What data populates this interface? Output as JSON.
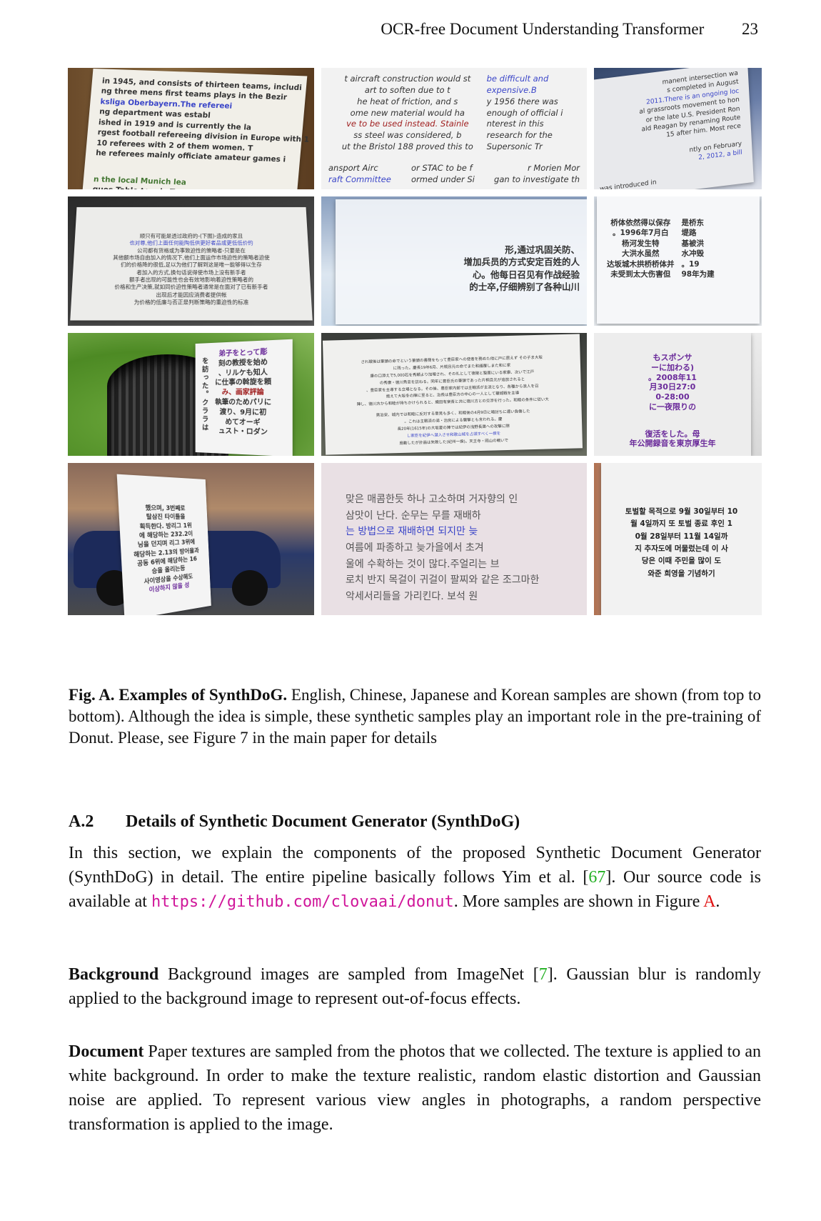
{
  "header": {
    "title": "OCR-free Document Understanding Transformer",
    "page": "23"
  },
  "figure": {
    "cells": [
      {
        "id": "en1",
        "lines": [
          {
            "t": "in 1945, and consists of thirteen teams, includi",
            "c": ""
          },
          {
            "t": "ng three mens first teams plays in the Bezir",
            "c": ""
          },
          {
            "t": "ksliga Oberbayern.The refereei",
            "c": "blue"
          },
          {
            "t": "ng department was establ",
            "c": ""
          },
          {
            "t": "ished in 1919 and is currently the la",
            "c": ""
          },
          {
            "t": "rgest football refereeing division in Europe with 1",
            "c": ""
          },
          {
            "t": "10 referees with 2 of them women. T",
            "c": ""
          },
          {
            "t": "he referees mainly officiate amateur games i",
            "c": ""
          },
          {
            "t": "n the local Munich lea",
            "c": "green"
          },
          {
            "t": "gues.Table tennis.T",
            "c": ""
          }
        ]
      },
      {
        "id": "en2",
        "lines": [
          {
            "t": "t aircraft construction would st",
            "c": ""
          },
          {
            "t": "art to soften due to t",
            "c": ""
          },
          {
            "t": "he heat of friction, and s",
            "c": ""
          },
          {
            "t": "ome new material would ha",
            "c": ""
          },
          {
            "t": "ve to be used instead. Stainle",
            "c": "red"
          },
          {
            "t": "ss steel was considered, b",
            "c": ""
          },
          {
            "t": "ut the Bristol 188 proved this to",
            "c": ""
          },
          {
            "t": "be difficult and",
            "c": "blue"
          },
          {
            "t": "expensive.B",
            "c": "blue"
          },
          {
            "t": "y 1956 there was",
            "c": ""
          },
          {
            "t": "enough of official i",
            "c": ""
          },
          {
            "t": "nterest in this",
            "c": ""
          },
          {
            "t": "research for the",
            "c": ""
          },
          {
            "t": "Supersonic Tr",
            "c": ""
          },
          {
            "t": "ansport Airc",
            "c": ""
          },
          {
            "t": "raft Committee",
            "c": "blue"
          },
          {
            "t": "or STAC to be f",
            "c": ""
          },
          {
            "t": "ormed under Si",
            "c": ""
          },
          {
            "t": "r Morien Mor",
            "c": ""
          },
          {
            "t": "gan to investigate th",
            "c": ""
          }
        ]
      },
      {
        "id": "en3",
        "lines": [
          {
            "t": "manent intersection wa",
            "c": ""
          },
          {
            "t": "s completed in August",
            "c": ""
          },
          {
            "t": "2011.There is an ongoing loc",
            "c": "blue"
          },
          {
            "t": "al grassroots movement to hon",
            "c": ""
          },
          {
            "t": "or the late U.S. President Ron",
            "c": ""
          },
          {
            "t": "ald Reagan by renaming Route",
            "c": ""
          },
          {
            "t": "15 after him. Most rece",
            "c": ""
          },
          {
            "t": "ntly on February",
            "c": ""
          },
          {
            "t": "2, 2012, a bill",
            "c": "blue"
          },
          {
            "t": "was introduced in",
            "c": ""
          }
        ]
      },
      {
        "id": "zh1",
        "lines": [
          {
            "t": "顺只有可能是透过政府的-(下图)-造成的家且",
            "c": ""
          },
          {
            "t": "也对尊,他们上面任何能陶低供更好者品或更低低价的",
            "c": "blue"
          },
          {
            "t": "公司都有货格或为事致迫性的策略者-只要是在",
            "c": ""
          },
          {
            "t": "其他额市场自由加入的情况下,他们上面运作市场迫性的策略者迫使",
            "c": ""
          },
          {
            "t": "们的价格降的很低,足以为他们了解到这是唯一能够得以生存",
            "c": ""
          },
          {
            "t": "者加入的方式,换句话说得使市场上没有新手者",
            "c": ""
          },
          {
            "t": "额手者出现的可能性也会有效地影响着迫性策略者的",
            "c": ""
          },
          {
            "t": "价格和生产决策,就如同价迫性策略者通常是在面对了已有新手者",
            "c": ""
          },
          {
            "t": "出现后才能因应消费者提供帐",
            "c": ""
          },
          {
            "t": "为价格的低廉与否正是判断策略的重迫性的标准",
            "c": ""
          }
        ]
      },
      {
        "id": "zh2",
        "lines": [
          {
            "t": "形,通过巩固关防、",
            "c": ""
          },
          {
            "t": "增加兵员的方式安定百姓的人",
            "c": ""
          },
          {
            "t": "心。他每日召见有作战经验",
            "c": ""
          },
          {
            "t": "的士卒,仔细辨别了各种山川",
            "c": ""
          }
        ]
      },
      {
        "id": "zh3",
        "lines": [
          {
            "t": "桥体依然得以保存",
            "c": ""
          },
          {
            "t": "。1996年7月白",
            "c": ""
          },
          {
            "t": "杨河发生特",
            "c": ""
          },
          {
            "t": "大洪水虽然",
            "c": ""
          },
          {
            "t": "达坂城木拱桥桥体并",
            "c": ""
          },
          {
            "t": "未受到太大伤害但",
            "c": ""
          },
          {
            "t": "是桥东",
            "c": ""
          },
          {
            "t": "堤路",
            "c": ""
          },
          {
            "t": "基被洪",
            "c": ""
          },
          {
            "t": "水冲毁",
            "c": ""
          },
          {
            "t": "。19",
            "c": ""
          },
          {
            "t": "98年为建",
            "c": ""
          }
        ]
      },
      {
        "id": "ja1",
        "lines": [
          {
            "t": "弟子をとって彫",
            "c": "purple"
          },
          {
            "t": "刻の教授を始め",
            "c": ""
          },
          {
            "t": "、リルケも知人",
            "c": ""
          },
          {
            "t": "に仕事の斡旋を頼",
            "c": ""
          },
          {
            "t": "み、画家評論",
            "c": "red"
          },
          {
            "t": "執筆のためパリに",
            "c": ""
          },
          {
            "t": "渡り、9月に初",
            "c": ""
          },
          {
            "t": "めてオーギ",
            "c": ""
          },
          {
            "t": "ュスト・ロダン",
            "c": ""
          },
          {
            "t": "を",
            "c": ""
          },
          {
            "t": "訪",
            "c": ""
          },
          {
            "t": "っ",
            "c": ""
          },
          {
            "t": "た",
            "c": ""
          },
          {
            "t": "。",
            "c": ""
          },
          {
            "t": "ク",
            "c": ""
          },
          {
            "t": "ラ",
            "c": ""
          },
          {
            "t": "ラ",
            "c": ""
          },
          {
            "t": "は",
            "c": ""
          }
        ]
      },
      {
        "id": "ja2",
        "lines": [
          {
            "t": "され戦後は筆頭の命でという筆頭の書簡をもって豊臣家への使者を務めた他に戸に居えず その子ま大坂",
            "c": ""
          },
          {
            "t": "に残った。慶長19年6月、片桐且元の命でまた和議覆しまた和に家",
            "c": ""
          },
          {
            "t": "康の口添えで5,000石を秀頼より加増され、その礼として徳陵と蟄居にいる家康、次いで江戸",
            "c": ""
          },
          {
            "t": "の秀康・徳川秀忠を訪ねる。同年に豊臣氏の筆頭であった片桐且元が追放されると",
            "c": ""
          },
          {
            "t": "、豊臣家を主導する立場となる。その後、豊臣家内部では主戦派が主流となり、各種から浪人を召",
            "c": ""
          },
          {
            "t": "抱えて大坂冬の陣に至ると、治長は豊臣方の中心の一人として籠城戦を主導",
            "c": ""
          },
          {
            "t": "陣し、徳川方から和睦が持ちかけられると、織田有楽斎と共に徳川方との交渉を行った。和睦の条件に従い大",
            "c": ""
          },
          {
            "t": "男治安、城内では和睦に反対する意見も多く、和睦後の4月9日に暗討ちに遭い負傷した",
            "c": ""
          },
          {
            "t": "。これは主戦派の弟・治房による襲撃とも言われる。慶",
            "c": ""
          },
          {
            "t": "長20年(1615年)の大坂夏の陣では紀伊の浅野長晟への攻撃に際",
            "c": ""
          },
          {
            "t": "し家臣を紀伊へ潜入させ和歌山城を占領すべく一揆を",
            "c": "blue"
          },
          {
            "t": "扇動したが計画は失敗した(紀州一揆)。天王寺・岡山の戦いで",
            "c": ""
          }
        ]
      },
      {
        "id": "ja3",
        "lines": [
          {
            "t": "もスポンサ",
            "c": "purple"
          },
          {
            "t": "ーに加わる)",
            "c": "purple"
          },
          {
            "t": "。2008年11",
            "c": "purple"
          },
          {
            "t": "月30日27:0",
            "c": "purple"
          },
          {
            "t": "0-28:00",
            "c": "purple"
          },
          {
            "t": "に一夜限りの",
            "c": "purple"
          },
          {
            "t": "復活をした。母",
            "c": "purple"
          },
          {
            "t": "年公開録音を東京厚生年",
            "c": "purple"
          }
        ]
      },
      {
        "id": "ko1",
        "lines": [
          {
            "t": "했으며, 3번째로",
            "c": ""
          },
          {
            "t": "탈삼진 타이틀을",
            "c": ""
          },
          {
            "t": "획득한다. 방리그 1위",
            "c": ""
          },
          {
            "t": "에 해당하는 232.2이",
            "c": ""
          },
          {
            "t": "닝을 던지며 리그 3위에",
            "c": ""
          },
          {
            "t": "해당하는 2.13의 방어율과",
            "c": ""
          },
          {
            "t": "공동 6위에 해당하는 16",
            "c": ""
          },
          {
            "t": "승을 올리는등",
            "c": ""
          },
          {
            "t": "사이영상을 수상해도",
            "c": ""
          },
          {
            "t": "이상하지 않을 성",
            "c": "purple"
          }
        ]
      },
      {
        "id": "ko2",
        "lines": [
          {
            "t": "맞은 매콤한듯 하나 고소하며 거자향의 인",
            "c": ""
          },
          {
            "t": "삼맛이 난다. 순무는 무를 재배하",
            "c": ""
          },
          {
            "t": "는 방법으로 재배하면 되지만 늦",
            "c": "blue"
          },
          {
            "t": "여름에 파종하고 늦가을에서 초겨",
            "c": ""
          },
          {
            "t": "울에 수확하는 것이 많다.주얼리는 브",
            "c": ""
          },
          {
            "t": "로치 반지 목걸이 귀걸이 팔찌와 같은 조그마한",
            "c": ""
          },
          {
            "t": "악세서리들을 가리킨다. 보석 원",
            "c": ""
          }
        ]
      },
      {
        "id": "ko3",
        "lines": [
          {
            "t": "토벌할 목적으로 9월 30일부터 10",
            "c": ""
          },
          {
            "t": "월 4일까지 또 토벌 종료 후인 1",
            "c": ""
          },
          {
            "t": "0월 28일부터 11월 14일까",
            "c": ""
          },
          {
            "t": "지 추자도에 머물렀는데 이 사",
            "c": ""
          },
          {
            "t": "당은 이때 주민을 많이 도",
            "c": ""
          },
          {
            "t": "와준 희영을 기념하기",
            "c": ""
          }
        ]
      }
    ]
  },
  "caption": {
    "label": "Fig. A. Examples of SynthDoG.",
    "text": " English, Chinese, Japanese and Korean samples are shown (from top to bottom). Although the idea is simple, these synthetic samples play an important role in the pre-training of Donut. Please, see Figure 7 in the main paper for details"
  },
  "section": {
    "number": "A.2",
    "title": "Details of Synthetic Document Generator (SynthDoG)"
  },
  "intro": {
    "t1": "In this section, we explain the components of the proposed Synthetic Document Generator (SynthDoG) in detail. The entire pipeline basically follows Yim et al. [",
    "ref1": "67",
    "t2": "]. Our source code is available at ",
    "url": "https://github.com/clovaai/donut",
    "t3": ". More samples are shown in Figure ",
    "ref2": "A",
    "t4": "."
  },
  "background": {
    "head": "Background",
    "t1": " Background images are sampled from ImageNet [",
    "ref": "7",
    "t2": "]. Gaussian blur is randomly applied to the background image to represent out-of-focus effects."
  },
  "document": {
    "head": "Document",
    "text": " Paper textures are sampled from the photos that we collected. The texture is applied to an white background. In order to make the texture realistic, random elastic distortion and Gaussian noise are applied. To represent various view angles in photographs, a random perspective transformation is applied to the image."
  }
}
